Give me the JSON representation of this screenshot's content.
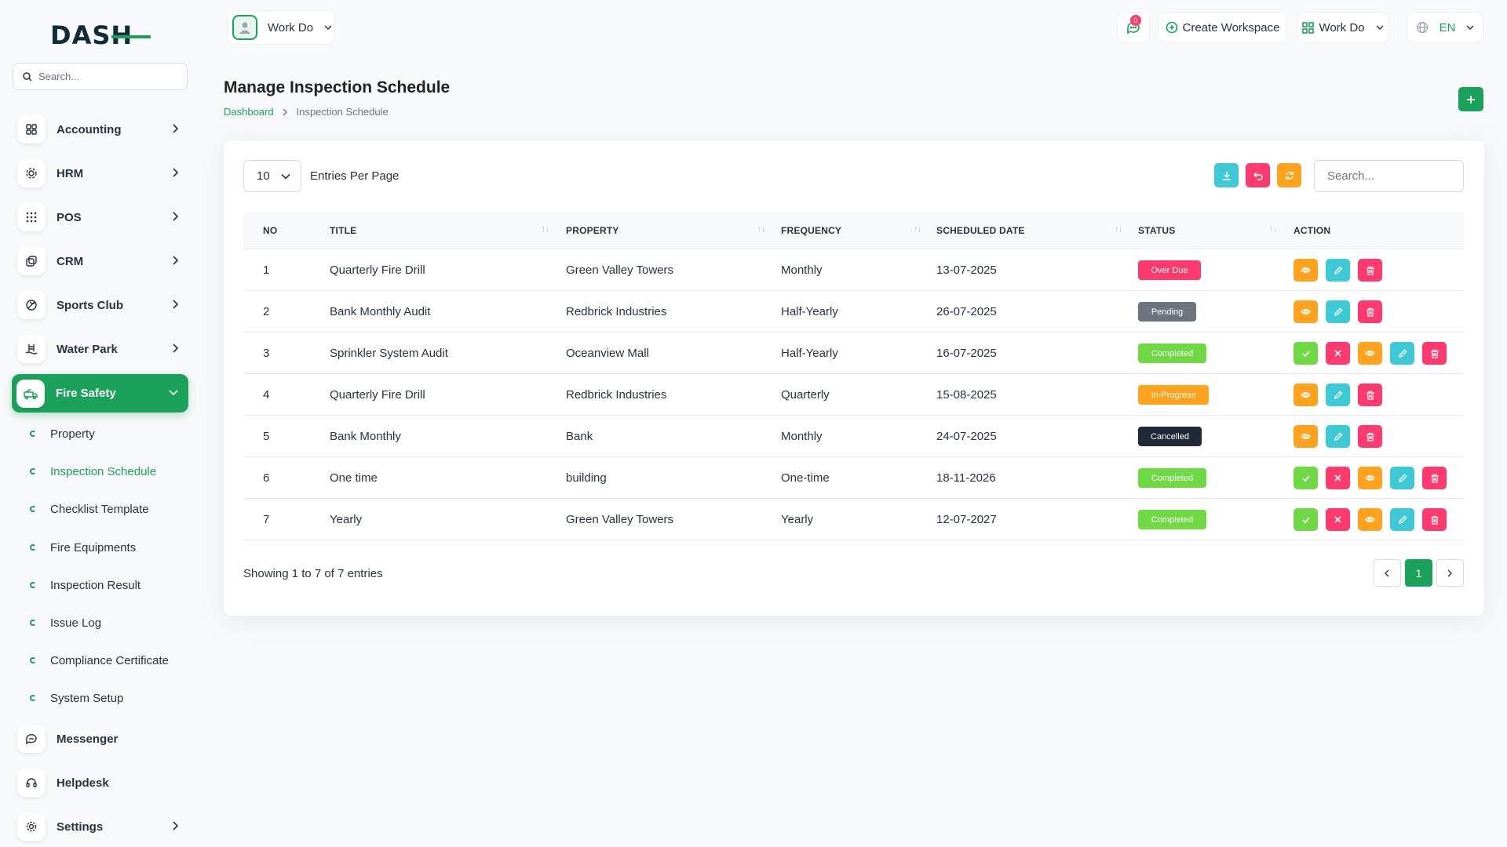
{
  "sidebar": {
    "logo_text": "DASH",
    "search_placeholder": "Search...",
    "nav": [
      {
        "label": "Accounting",
        "icon": "grid-icon"
      },
      {
        "label": "HRM",
        "icon": "users-icon"
      },
      {
        "label": "POS",
        "icon": "dots-grid-icon"
      },
      {
        "label": "CRM",
        "icon": "layers-icon"
      },
      {
        "label": "Sports Club",
        "icon": "ball-icon"
      },
      {
        "label": "Water Park",
        "icon": "pool-icon"
      },
      {
        "label": "Fire Safety",
        "icon": "fire-truck-icon"
      }
    ],
    "sub": [
      {
        "label": "Property"
      },
      {
        "label": "Inspection Schedule"
      },
      {
        "label": "Checklist Template"
      },
      {
        "label": "Fire Equipments"
      },
      {
        "label": "Inspection Result"
      },
      {
        "label": "Issue Log"
      },
      {
        "label": "Compliance Certificate"
      },
      {
        "label": "System Setup"
      }
    ],
    "bottom": [
      {
        "label": "Messenger",
        "icon": "chat-icon"
      },
      {
        "label": "Helpdesk",
        "icon": "headset-icon"
      },
      {
        "label": "Settings",
        "icon": "gear-icon"
      }
    ]
  },
  "topbar": {
    "workspace_label": "Work Do",
    "notification_count": "0",
    "create_workspace": "Create Workspace",
    "workdo_label": "Work Do",
    "language": "EN"
  },
  "page": {
    "title": "Manage Inspection Schedule",
    "breadcrumb_home": "Dashboard",
    "breadcrumb_current": "Inspection Schedule"
  },
  "table": {
    "entries_value": "10",
    "entries_label": "Entries Per Page",
    "search_placeholder": "Search...",
    "headers": [
      "NO",
      "TITLE",
      "PROPERTY",
      "FREQUENCY",
      "SCHEDULED DATE",
      "STATUS",
      "ACTION"
    ],
    "rows": [
      {
        "no": "1",
        "title": "Quarterly Fire Drill",
        "property": "Green Valley Towers",
        "frequency": "Monthly",
        "date": "13-07-2025",
        "status": "Over Due"
      },
      {
        "no": "2",
        "title": "Bank Monthly Audit",
        "property": "Redbrick Industries",
        "frequency": "Half-Yearly",
        "date": "26-07-2025",
        "status": "Pending"
      },
      {
        "no": "3",
        "title": "Sprinkler System Audit",
        "property": "Oceanview Mall",
        "frequency": "Half-Yearly",
        "date": "16-07-2025",
        "status": "Completed"
      },
      {
        "no": "4",
        "title": "Quarterly Fire Drill",
        "property": "Redbrick Industries",
        "frequency": "Quarterly",
        "date": "15-08-2025",
        "status": "In-Progress"
      },
      {
        "no": "5",
        "title": "Bank Monthly",
        "property": "Bank",
        "frequency": "Monthly",
        "date": "24-07-2025",
        "status": "Cancelled"
      },
      {
        "no": "6",
        "title": "One time",
        "property": "building",
        "frequency": "One-time",
        "date": "18-11-2026",
        "status": "Completed"
      },
      {
        "no": "7",
        "title": "Yearly",
        "property": "Green Valley Towers",
        "frequency": "Yearly",
        "date": "12-07-2027",
        "status": "Completed"
      }
    ],
    "showing": "Showing 1 to 7 of 7 entries",
    "current_page": "1"
  },
  "colors": {
    "primary": "#1aa25a",
    "overdue": "#ff3a6e",
    "pending": "#6c757d",
    "completed": "#6fd943",
    "inprogress": "#ffa21d",
    "cancelled": "#1f2937",
    "info": "#3ec9d6"
  }
}
